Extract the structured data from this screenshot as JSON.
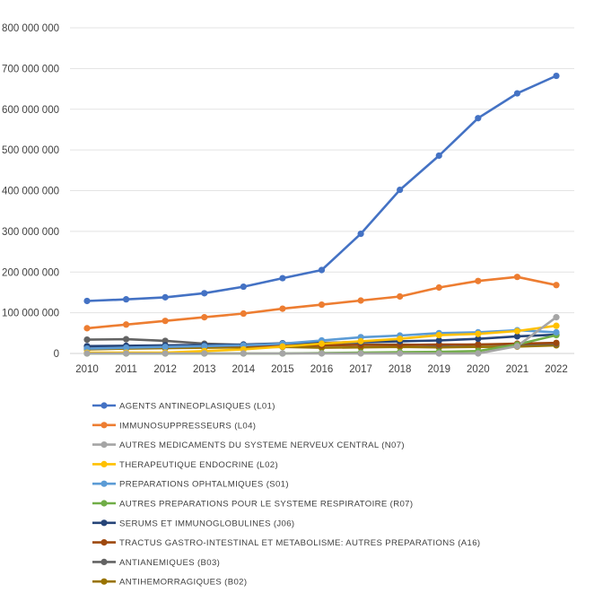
{
  "chart_data": {
    "type": "line",
    "title": "",
    "xlabel": "",
    "ylabel": "",
    "ylim": [
      0,
      800000000
    ],
    "ytick_values": [
      0,
      100000000,
      200000000,
      300000000,
      400000000,
      500000000,
      600000000,
      700000000,
      800000000
    ],
    "ytick_labels": [
      "0",
      "100 000 000",
      "200 000 000",
      "300 000 000",
      "400 000 000",
      "500 000 000",
      "600 000 000",
      "700 000 000",
      "800 000 000"
    ],
    "categories": [
      "2010",
      "2011",
      "2012",
      "2013",
      "2014",
      "2015",
      "2016",
      "2017",
      "2018",
      "2019",
      "2020",
      "2021",
      "2022"
    ],
    "grid": true,
    "legend_position": "bottom",
    "series": [
      {
        "name": "AGENTS ANTINEOPLASIQUES (L01)",
        "color": "#4472C4",
        "values": [
          129000000,
          133000000,
          138000000,
          148000000,
          164000000,
          185000000,
          205000000,
          294000000,
          402000000,
          486000000,
          578000000,
          639000000,
          682000000
        ]
      },
      {
        "name": "IMMUNOSUPPRESSEURS (L04)",
        "color": "#ED7D31",
        "values": [
          62000000,
          71000000,
          80000000,
          89000000,
          98000000,
          110000000,
          120000000,
          130000000,
          140000000,
          162000000,
          178000000,
          188000000,
          168000000
        ]
      },
      {
        "name": "AUTRES MEDICAMENTS DU SYSTEME NERVEUX CENTRAL (N07)",
        "color": "#A5A5A5",
        "values": [
          0,
          0,
          0,
          0,
          0,
          0,
          0,
          0,
          0,
          0,
          0,
          18000000,
          89000000
        ]
      },
      {
        "name": "THERAPEUTIQUE ENDOCRINE (L02)",
        "color": "#FFC000",
        "values": [
          2000000,
          2000000,
          2000000,
          6000000,
          10000000,
          17000000,
          24000000,
          30000000,
          36000000,
          45000000,
          48000000,
          55000000,
          68000000
        ]
      },
      {
        "name": "PREPARATIONS OPHTALMIQUES (S01)",
        "color": "#5B9BD5",
        "values": [
          12000000,
          14000000,
          16000000,
          18000000,
          20000000,
          24000000,
          32000000,
          40000000,
          44000000,
          50000000,
          52000000,
          57000000,
          52000000
        ]
      },
      {
        "name": "AUTRES PREPARATIONS POUR LE SYSTEME RESPIRATOIRE (R07)",
        "color": "#70AD47",
        "values": [
          0,
          0,
          0,
          0,
          0,
          0,
          1000000,
          2000000,
          3000000,
          4000000,
          6000000,
          22000000,
          45000000
        ]
      },
      {
        "name": "SERUMS ET IMMUNOGLOBULINES (J06)",
        "color": "#264478",
        "values": [
          18000000,
          19000000,
          20000000,
          21000000,
          22000000,
          25000000,
          26000000,
          28000000,
          30000000,
          32000000,
          36000000,
          42000000,
          46000000
        ]
      },
      {
        "name": "TRACTUS GASTRO-INTESTINAL ET METABOLISME: AUTRES PREPARATIONS (A16)",
        "color": "#9E480E",
        "values": [
          13000000,
          15000000,
          16000000,
          18000000,
          19000000,
          20000000,
          20000000,
          21000000,
          21000000,
          22000000,
          22000000,
          24000000,
          26000000
        ]
      },
      {
        "name": "ANTIANEMIQUES (B03)",
        "color": "#636363",
        "values": [
          34000000,
          35000000,
          31000000,
          24000000,
          21000000,
          22000000,
          22000000,
          22000000,
          22000000,
          20000000,
          22000000,
          22000000,
          24000000
        ]
      },
      {
        "name": "ANTIHEMORRAGIQUES (B02)",
        "color": "#997300",
        "values": [
          10000000,
          12000000,
          13000000,
          14000000,
          15000000,
          16000000,
          14000000,
          15000000,
          16000000,
          15000000,
          16000000,
          17000000,
          20000000
        ]
      }
    ]
  }
}
